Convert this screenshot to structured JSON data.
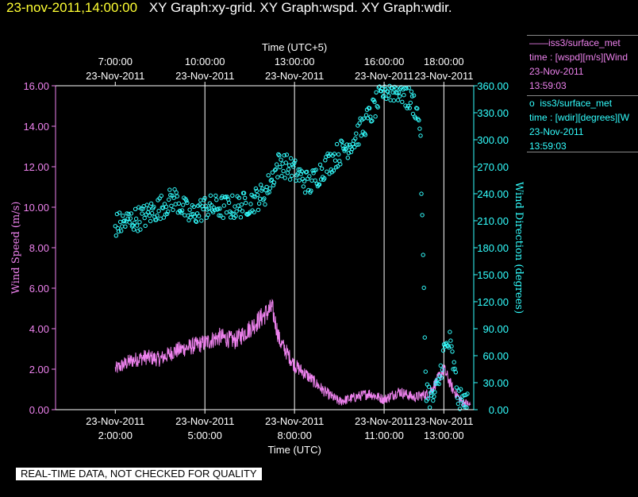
{
  "header": {
    "datetime": "23-nov-2011,14:00:00",
    "titles": "XY Graph:xy-grid.  XY Graph:wspd.  XY Graph:wdir."
  },
  "legend": {
    "wspd": {
      "marker": "——",
      "name": "iss3/surface_met",
      "var": "time : [wspd][m/s][Wind",
      "date": "23-Nov-2011",
      "time": "13:59:03"
    },
    "wdir": {
      "marker": "o",
      "name": "iss3/surface_met",
      "var": "time : [wdir][degrees][W",
      "date": "23-Nov-2011",
      "time": "13:59:03"
    }
  },
  "footer_banner": "REAL-TIME DATA, NOT CHECKED FOR QUALITY",
  "colors": {
    "wspd": "#ee82ee",
    "wdir": "#33ffff",
    "grid": "#ffffff",
    "header_date": "#ffff33"
  },
  "chart_data": {
    "type": "line",
    "x_range_utc_hours": [
      0.0,
      14.0
    ],
    "top_axis": {
      "label": "Time (UTC+5)",
      "ticks": [
        {
          "utc": 2,
          "time": "7:00:00",
          "date": "23-Nov-2011"
        },
        {
          "utc": 5,
          "time": "10:00:00",
          "date": "23-Nov-2011"
        },
        {
          "utc": 8,
          "time": "13:00:00",
          "date": "23-Nov-2011"
        },
        {
          "utc": 11,
          "time": "16:00:00",
          "date": "23-Nov-2011"
        },
        {
          "utc": 13,
          "time": "18:00:00",
          "date": "23-Nov-2011"
        }
      ]
    },
    "bottom_axis": {
      "label": "Time (UTC)",
      "ticks": [
        {
          "utc": 2,
          "date": "23-Nov-2011",
          "time": "2:00:00"
        },
        {
          "utc": 5,
          "date": "23-Nov-2011",
          "time": "5:00:00"
        },
        {
          "utc": 8,
          "date": "23-Nov-2011",
          "time": "8:00:00"
        },
        {
          "utc": 11,
          "date": "23-Nov-2011",
          "time": "11:00:00"
        },
        {
          "utc": 13,
          "date": "23-Nov-2011",
          "time": "13:00:00"
        }
      ]
    },
    "left_axis": {
      "label": "Wind Speed (m/s)",
      "range": [
        0,
        16
      ],
      "ticks": [
        "0.00",
        "2.00",
        "4.00",
        "6.00",
        "8.00",
        "10.00",
        "12.00",
        "14.00",
        "16.00"
      ]
    },
    "right_axis": {
      "label": "Wind Direction (degrees)",
      "range": [
        0,
        360
      ],
      "ticks": [
        "0.00",
        "30.00",
        "60.00",
        "90.00",
        "120.00",
        "150.00",
        "180.00",
        "210.00",
        "240.00",
        "270.00",
        "300.00",
        "330.00",
        "360.00"
      ]
    },
    "vertical_grid_utc": [
      5,
      8,
      11,
      13
    ],
    "series": [
      {
        "name": "wspd",
        "style": "line",
        "axis": "left",
        "x": [
          2.0,
          2.5,
          3.0,
          3.5,
          4.0,
          4.5,
          5.0,
          5.5,
          6.0,
          6.5,
          7.0,
          7.25,
          7.5,
          8.0,
          8.5,
          9.0,
          9.5,
          10.0,
          10.5,
          11.0,
          11.5,
          12.0,
          12.5,
          12.8,
          13.0,
          13.3,
          13.6,
          13.9
        ],
        "y": [
          2.0,
          2.4,
          2.6,
          2.5,
          2.9,
          3.1,
          3.3,
          3.6,
          3.4,
          4.0,
          4.7,
          5.0,
          3.4,
          2.2,
          1.6,
          0.9,
          0.4,
          0.6,
          0.8,
          0.5,
          0.9,
          0.6,
          0.8,
          1.5,
          2.0,
          1.0,
          0.4,
          0.2
        ],
        "noise": 0.55
      },
      {
        "name": "wdir",
        "style": "scatter",
        "axis": "right",
        "x": [
          2.0,
          2.5,
          3.0,
          3.5,
          4.0,
          4.5,
          5.0,
          5.5,
          6.0,
          6.5,
          7.0,
          7.5,
          8.0,
          8.5,
          9.0,
          9.5,
          10.0,
          10.5,
          11.0,
          11.5,
          12.0,
          12.2,
          12.4,
          12.6,
          12.8,
          13.0,
          13.2,
          13.5,
          13.8
        ],
        "y": [
          205,
          210,
          215,
          225,
          235,
          215,
          225,
          225,
          225,
          230,
          240,
          275,
          265,
          250,
          270,
          285,
          300,
          325,
          355,
          355,
          340,
          320,
          25,
          10,
          25,
          65,
          75,
          10,
          5
        ],
        "noise": 14
      }
    ]
  }
}
